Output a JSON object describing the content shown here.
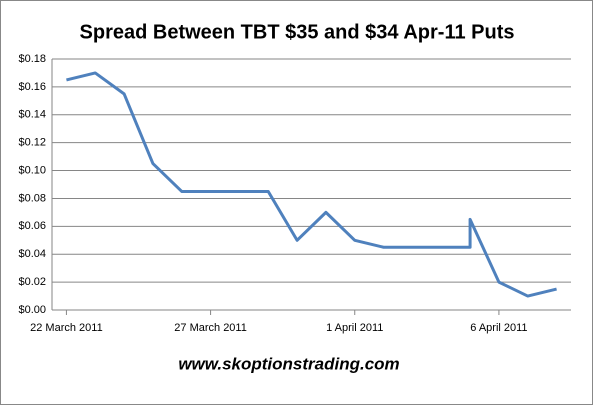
{
  "chart_data": {
    "type": "line",
    "title": "Spread Between TBT $35 and $34 Apr-11 Puts",
    "annotation": "www.skoptionstrading.com",
    "x": [
      "2011-03-22",
      "2011-03-23",
      "2011-03-24",
      "2011-03-25",
      "2011-03-26",
      "2011-03-27",
      "2011-03-28",
      "2011-03-29",
      "2011-03-30",
      "2011-03-31",
      "2011-04-01",
      "2011-04-02",
      "2011-04-03",
      "2011-04-04",
      "2011-04-05",
      "2011-04-05",
      "2011-04-06",
      "2011-04-07",
      "2011-04-08"
    ],
    "series": [
      {
        "name": "Spread",
        "color": "#4f81bd",
        "values": [
          0.165,
          0.17,
          0.155,
          0.105,
          0.085,
          0.085,
          0.085,
          0.085,
          0.05,
          0.07,
          0.05,
          0.045,
          0.045,
          0.045,
          0.045,
          0.065,
          0.02,
          0.01,
          0.015
        ]
      }
    ],
    "xticks": [
      {
        "value": "2011-03-22",
        "label": "22 March 2011"
      },
      {
        "value": "2011-03-27",
        "label": "27 March 2011"
      },
      {
        "value": "2011-04-01",
        "label": "1 April 2011"
      },
      {
        "value": "2011-04-06",
        "label": "6 April 2011"
      }
    ],
    "ylim": [
      0,
      0.18
    ],
    "yticks": [
      {
        "value": 0,
        "label": "$0.00"
      },
      {
        "value": 0.02,
        "label": "$0.02"
      },
      {
        "value": 0.04,
        "label": "$0.04"
      },
      {
        "value": 0.06,
        "label": "$0.06"
      },
      {
        "value": 0.08,
        "label": "$0.08"
      },
      {
        "value": 0.1,
        "label": "$0.10"
      },
      {
        "value": 0.12,
        "label": "$0.12"
      },
      {
        "value": 0.14,
        "label": "$0.14"
      },
      {
        "value": 0.16,
        "label": "$0.16"
      },
      {
        "value": 0.18,
        "label": "$0.18"
      }
    ],
    "grid": true
  }
}
